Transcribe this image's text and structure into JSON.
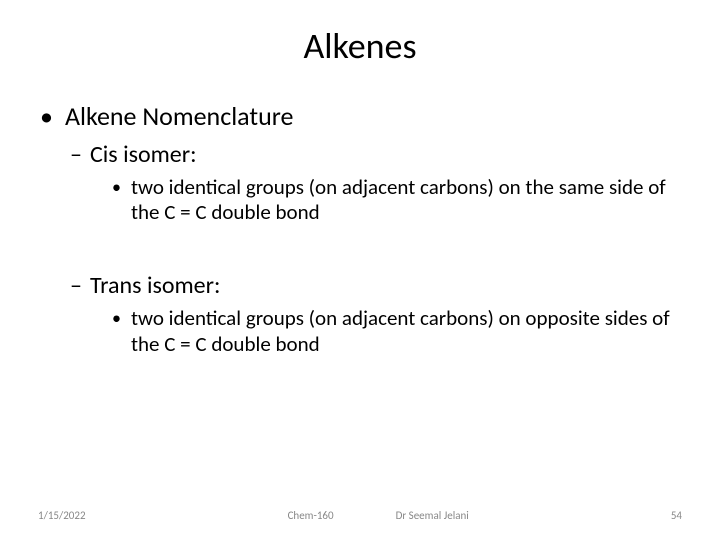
{
  "title": "Alkenes",
  "level1": "Alkene Nomenclature",
  "cis": {
    "label": "Cis isomer:",
    "def": "two identical groups (on adjacent carbons) on the same side of the C = C double bond"
  },
  "trans": {
    "label": "Trans isomer:",
    "def": "two identical groups (on adjacent carbons) on opposite sides of the C = C double bond"
  },
  "footer": {
    "date": "1/15/2022",
    "course": "Chem-160",
    "author": "Dr Seemal Jelani",
    "page": "54"
  },
  "colors": {
    "text": "#000000",
    "footer": "#888888",
    "background": "#ffffff"
  }
}
